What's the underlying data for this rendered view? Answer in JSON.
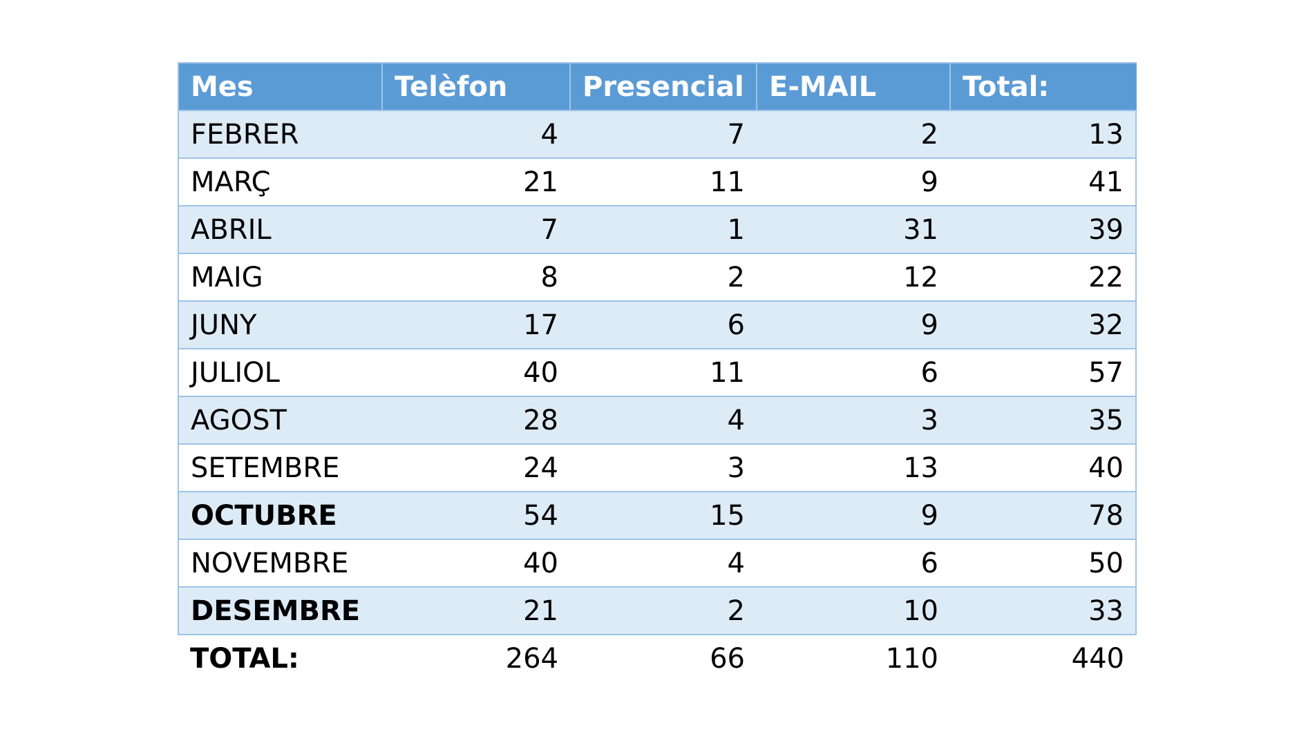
{
  "table": {
    "header": [
      "Mes",
      "Telèfon",
      "Presencial",
      "E-MAIL",
      "Total:"
    ],
    "rows": [
      [
        "FEBRER",
        4,
        7,
        2,
        13
      ],
      [
        "MARÇ",
        21,
        11,
        9,
        41
      ],
      [
        "ABRIL",
        7,
        1,
        31,
        39
      ],
      [
        "MAIG",
        8,
        2,
        12,
        22
      ],
      [
        "JUNY",
        17,
        6,
        9,
        32
      ],
      [
        "JULIOL",
        40,
        11,
        6,
        57
      ],
      [
        "AGOST",
        28,
        4,
        3,
        35
      ],
      [
        "SETEMBRE",
        24,
        3,
        13,
        40
      ],
      [
        "OCTUBRE",
        54,
        15,
        9,
        78
      ],
      [
        "NOVEMBRE",
        40,
        4,
        6,
        50
      ],
      [
        "DESEMBRE",
        21,
        2,
        10,
        33
      ]
    ],
    "total": [
      "TOTAL:",
      264,
      66,
      110,
      440
    ]
  }
}
